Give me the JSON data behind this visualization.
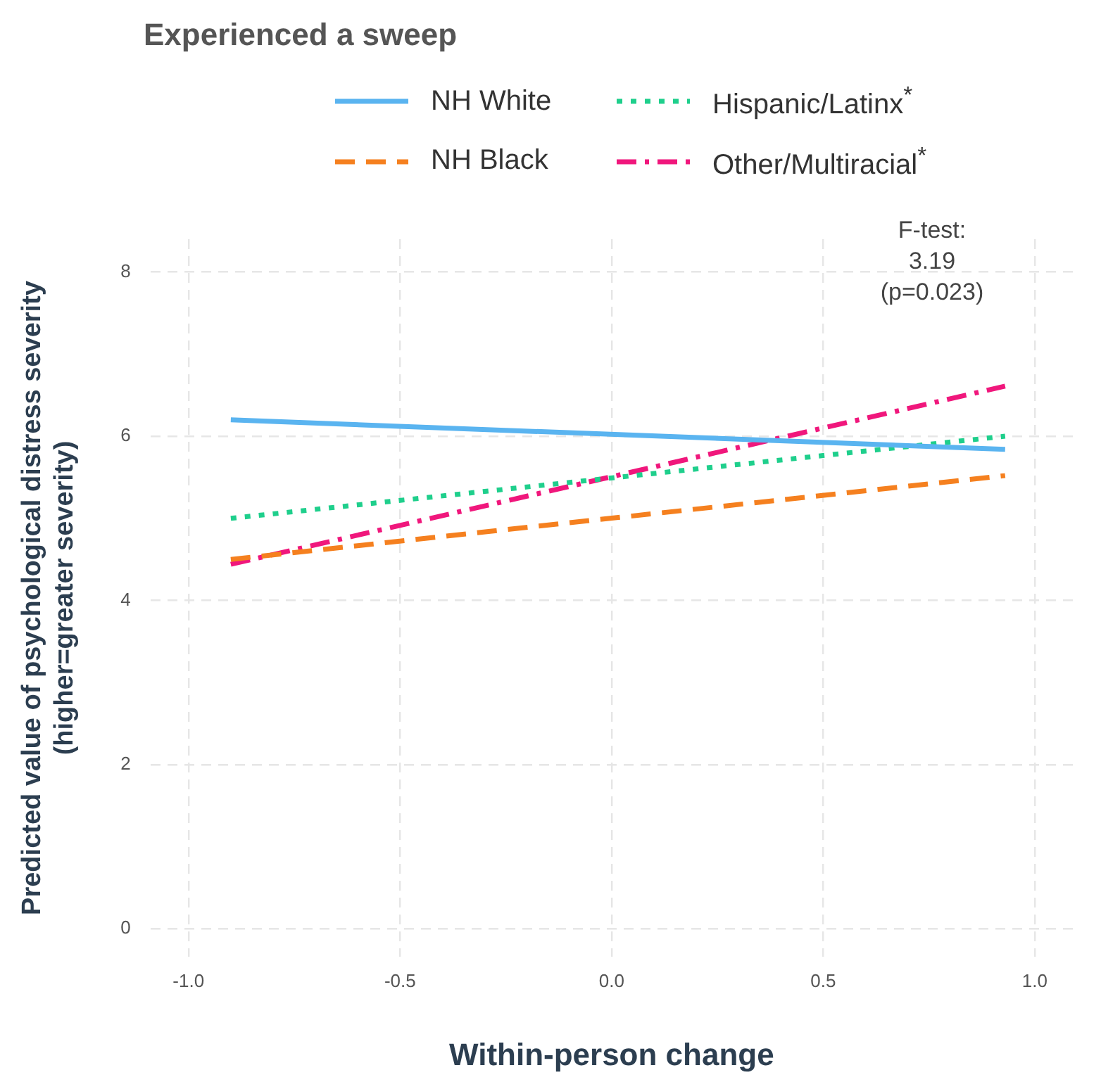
{
  "chart_data": {
    "type": "line",
    "title": "Experienced a sweep",
    "xlabel": "Within-person change",
    "ylabel": "Predicted value of psychological distress severity\n(higher=greater severity)",
    "x": [
      -0.9,
      0.93
    ],
    "series": [
      {
        "name": "NH White",
        "color": "#5ab4f0",
        "line_style": "solid",
        "values": [
          6.2,
          5.84
        ]
      },
      {
        "name": "Hispanic/Latinx$^{*}$",
        "color": "#1fcf8c",
        "line_style": "dotted",
        "values": [
          5.0,
          6.0
        ]
      },
      {
        "name": "NH Black",
        "color": "#f5801f",
        "line_style": "dashed",
        "values": [
          4.5,
          5.52
        ]
      },
      {
        "name": "Other/Multiracial$^{*}$",
        "color": "#f0177c",
        "line_style": "dashdot",
        "values": [
          4.44,
          6.61
        ]
      }
    ],
    "xlim": [
      -1.09,
      1.09
    ],
    "xticks": [
      {
        "value": -1,
        "label": "-1.0"
      },
      {
        "value": -0.5,
        "label": "-0.5"
      },
      {
        "value": 0,
        "label": "0.0"
      },
      {
        "value": 0.5,
        "label": "0.5"
      },
      {
        "value": 1,
        "label": "1.0"
      }
    ],
    "ylim": [
      -0.34,
      8.4
    ],
    "yticks": [
      0,
      2,
      4,
      6,
      8
    ],
    "grid": true,
    "legend": "top",
    "marker": "none",
    "annotations": [
      "F-test:\n3.19\n(p=0.023)"
    ]
  }
}
